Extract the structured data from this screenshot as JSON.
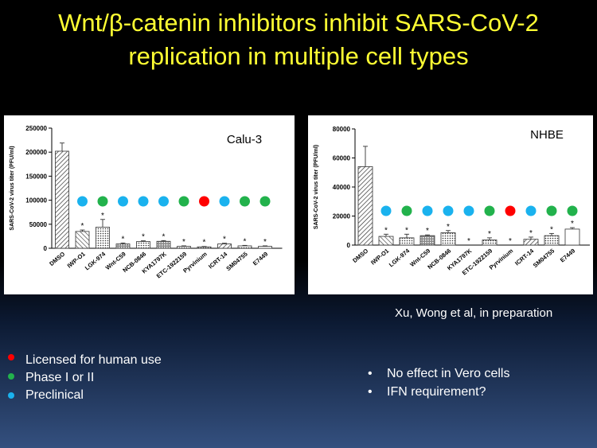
{
  "title_line1": "Wnt/β-catenin inhibitors inhibit SARS-CoV-2",
  "title_line2": "replication in multiple cell types",
  "citation": "Xu, Wong et al, in preparation",
  "legend": [
    {
      "label": "Licensed for human use",
      "color": "#ff0000"
    },
    {
      "label": "Phase I or II",
      "color": "#22b24c"
    },
    {
      "label": "Preclinical",
      "color": "#1ab2ee"
    }
  ],
  "bullets": [
    "No effect in Vero cells",
    "IFN requirement?"
  ],
  "colors": {
    "licensed": "#ff0000",
    "phase": "#22b24c",
    "preclinical": "#1ab2ee"
  },
  "chart_data": [
    {
      "type": "bar",
      "panel_label": "Calu-3",
      "ylabel": "SARS-CoV-2 virus titer (PFU/ml)",
      "ylim": [
        0,
        250000
      ],
      "yticks": [
        0,
        50000,
        100000,
        150000,
        200000,
        250000
      ],
      "categories": [
        "DMSO",
        "IWP-O1",
        "LGK-974",
        "Wnt-C59",
        "NCB-0846",
        "KYA1797K",
        "ETC-1922159",
        "Pyrvinium",
        "ICRT-14",
        "SM04755",
        "E7449"
      ],
      "values": [
        202000,
        35000,
        44000,
        9000,
        14000,
        14500,
        4000,
        3000,
        9000,
        5000,
        4000
      ],
      "errors": [
        17000,
        3000,
        16000,
        2000,
        1500,
        1500,
        1000,
        800,
        1500,
        1000,
        1000
      ],
      "significance": [
        "",
        "*",
        "*",
        "*",
        "*",
        "*",
        "*",
        "*",
        "*",
        "*",
        "*"
      ],
      "status": [
        "",
        "preclinical",
        "phase",
        "preclinical",
        "preclinical",
        "preclinical",
        "phase",
        "licensed",
        "preclinical",
        "phase",
        "phase"
      ]
    },
    {
      "type": "bar",
      "panel_label": "NHBE",
      "ylabel": "SARS-CoV-2 virus titer (PFU/ml)",
      "ylim": [
        0,
        80000
      ],
      "yticks": [
        0,
        20000,
        40000,
        60000,
        80000
      ],
      "categories": [
        "DMSO",
        "IWP-O1",
        "LGK-974",
        "Wnt-C59",
        "NCB-0846",
        "KYA1797K",
        "ETC-1922159",
        "Pyrvinium",
        "ICRT-14",
        "SM04755",
        "E7449"
      ],
      "values": [
        54000,
        6000,
        5000,
        6500,
        8500,
        0,
        3500,
        0,
        4000,
        6500,
        11000
      ],
      "errors": [
        14000,
        1500,
        2500,
        500,
        1500,
        0,
        1500,
        0,
        1500,
        1500,
        1000
      ],
      "significance": [
        "",
        "*",
        "*",
        "*",
        "*",
        "*",
        "*",
        "*",
        "*",
        "*",
        "*"
      ],
      "status": [
        "",
        "preclinical",
        "phase",
        "preclinical",
        "preclinical",
        "preclinical",
        "phase",
        "licensed",
        "preclinical",
        "phase",
        "phase"
      ]
    }
  ]
}
